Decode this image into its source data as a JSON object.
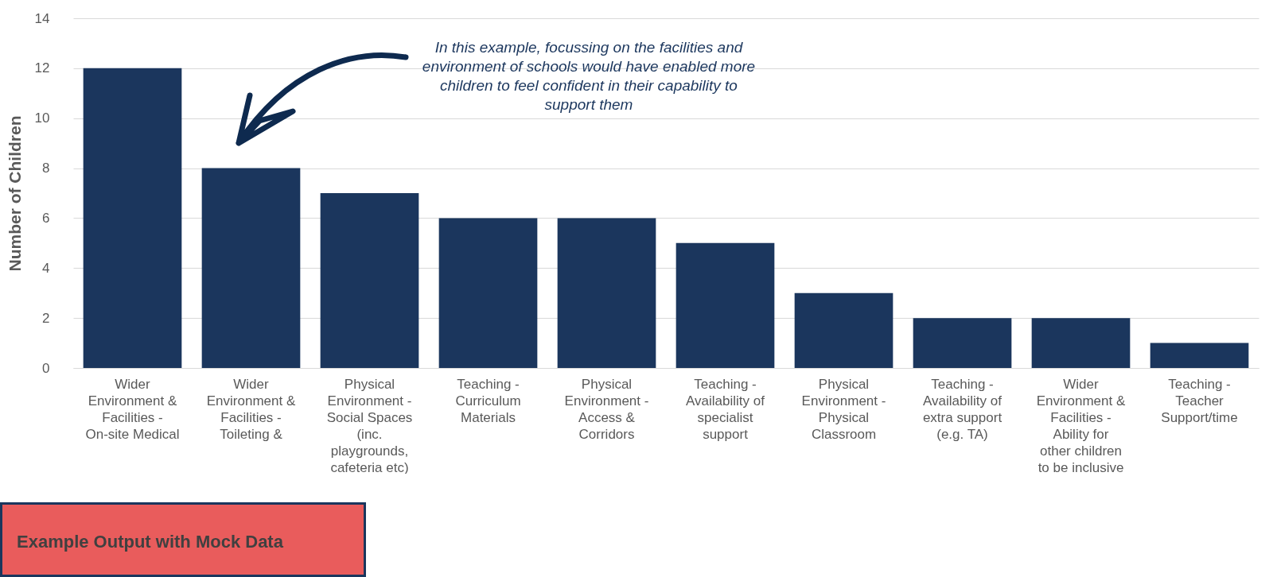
{
  "chart_data": {
    "type": "bar",
    "ylabel": "Number of Children",
    "categories": [
      "Wider Environment & Facilities - On-site Medical",
      "Wider Environment & Facilities - Toileting &",
      "Physical Environment - Social Spaces (inc. playgrounds, cafeteria etc)",
      "Teaching - Curriculum Materials",
      "Physical Environment - Access & Corridors",
      "Teaching - Availability of specialist support",
      "Physical Environment - Physical Classroom",
      "Teaching - Availability of extra support (e.g. TA)",
      "Wider Environment & Facilities - Ability for other children to be inclusive",
      "Teaching - Teacher Support/time"
    ],
    "values": [
      12,
      8,
      7,
      6,
      6,
      5,
      3,
      2,
      2,
      1
    ],
    "color": "#1b365d",
    "ylim": [
      0,
      14
    ],
    "yticks": [
      0,
      2,
      4,
      6,
      8,
      10,
      12,
      14
    ],
    "grid": "y",
    "annotations": [
      "In this example, focussing on the facilities and environment of schools would have enabled more children to feel confident in their capability to support them",
      "Example Output with Mock Data"
    ]
  }
}
